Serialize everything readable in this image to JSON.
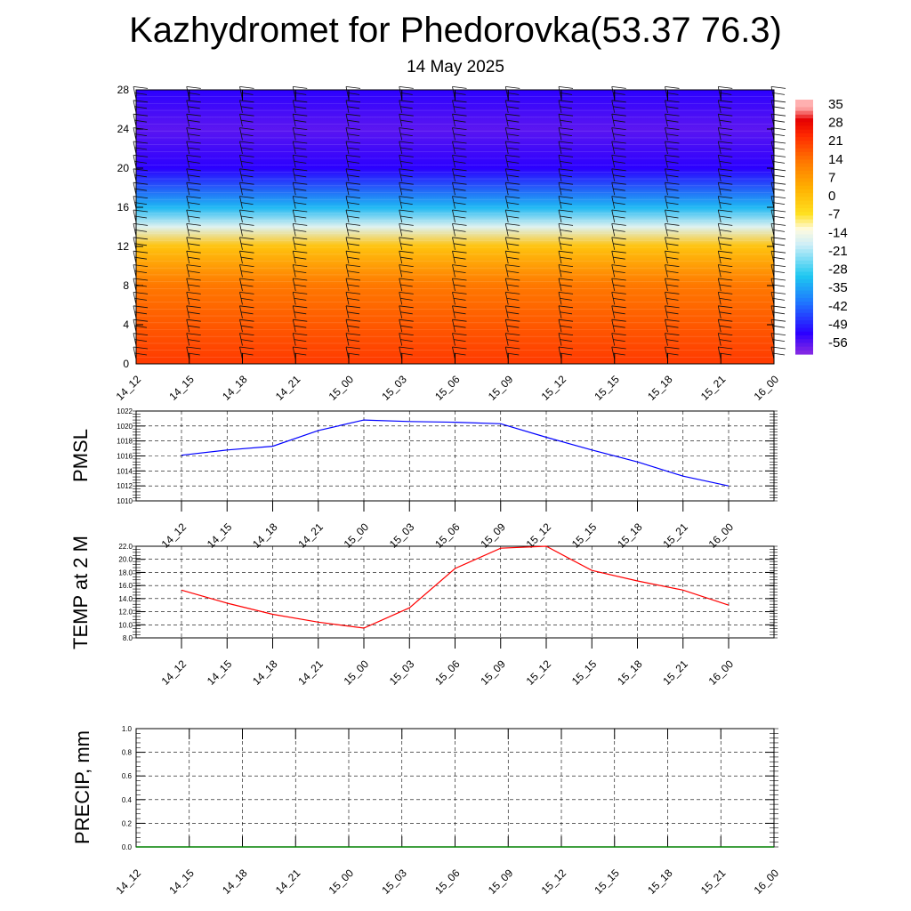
{
  "header": {
    "title": "Kazhydromet for Phedorovka(53.37 76.3)",
    "subtitle": "14 May 2025"
  },
  "chart_data": [
    {
      "type": "heatmap",
      "x": [
        "14_12",
        "14_15",
        "14_18",
        "14_21",
        "15_00",
        "15_03",
        "15_06",
        "15_09",
        "15_12",
        "15_15",
        "15_18",
        "15_21",
        "16_00"
      ],
      "y_ticks": [
        0,
        4,
        8,
        12,
        16,
        20,
        24,
        28
      ],
      "ylim": [
        0,
        28
      ],
      "colorbar": {
        "labels": [
          "35",
          "28",
          "21",
          "14",
          "7",
          "0",
          "-7",
          "-14",
          "-21",
          "-28",
          "-35",
          "-42",
          "-49",
          "-56"
        ],
        "range": [
          -60,
          38
        ]
      },
      "profile_levels": [
        0,
        4,
        8,
        12,
        14,
        16,
        20,
        24,
        28
      ],
      "profile_values": [
        22,
        18,
        14,
        0,
        -16,
        -32,
        -52,
        -56,
        -52
      ]
    },
    {
      "type": "line",
      "ylabel": "PMSL",
      "x": [
        "14_12",
        "14_15",
        "14_18",
        "14_21",
        "15_00",
        "15_03",
        "15_06",
        "15_09",
        "15_12",
        "15_15",
        "15_18",
        "15_21",
        "16_00"
      ],
      "y_ticks": [
        "1010",
        "1012",
        "1014",
        "1016",
        "1018",
        "1020",
        "1022"
      ],
      "ylim": [
        1010,
        1022
      ],
      "series": [
        {
          "values": [
            1016.1,
            1016.8,
            1017.3,
            1019.4,
            1020.8,
            1020.6,
            1020.5,
            1020.3,
            1018.5,
            1016.8,
            1015.2,
            1013.3,
            1012.0
          ]
        }
      ],
      "color": "#0000ff"
    },
    {
      "type": "line",
      "ylabel": "TEMP at 2 M",
      "x": [
        "14_12",
        "14_15",
        "14_18",
        "14_21",
        "15_00",
        "15_03",
        "15_06",
        "15_09",
        "15_12",
        "15_15",
        "15_18",
        "15_21",
        "16_00"
      ],
      "y_ticks": [
        "8.0",
        "10.0",
        "12.0",
        "14.0",
        "16.0",
        "18.0",
        "20.0",
        "22.0"
      ],
      "ylim": [
        8,
        22
      ],
      "series": [
        {
          "values": [
            15.3,
            13.3,
            11.6,
            10.4,
            9.5,
            12.6,
            18.6,
            21.7,
            22.0,
            18.3,
            16.7,
            15.3,
            13.0
          ]
        }
      ],
      "color": "#ff0000"
    },
    {
      "type": "line",
      "ylabel": "PRECIP, mm",
      "x": [
        "14_12",
        "14_15",
        "14_18",
        "14_21",
        "15_00",
        "15_03",
        "15_06",
        "15_09",
        "15_12",
        "15_15",
        "15_18",
        "15_21",
        "16_00"
      ],
      "y_ticks": [
        "0.0",
        "0.2",
        "0.4",
        "0.6",
        "0.8",
        "1.0"
      ],
      "ylim": [
        0,
        1
      ],
      "series": [
        {
          "values": [
            0,
            0,
            0,
            0,
            0,
            0,
            0,
            0,
            0,
            0,
            0,
            0,
            0
          ]
        }
      ],
      "color": "#008000"
    }
  ]
}
